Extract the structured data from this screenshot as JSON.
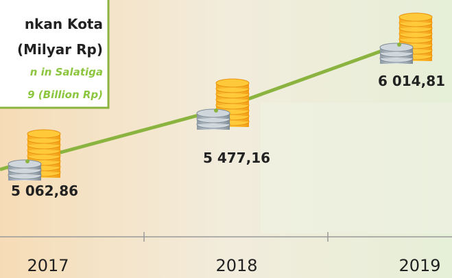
{
  "chart_data": {
    "type": "line",
    "title_lines": [
      "nkan Kota",
      "(Milyar Rp)"
    ],
    "subtitle_lines": [
      "n in Salatiga",
      "9 (Billion Rp)"
    ],
    "categories": [
      "2017",
      "2018",
      "2019"
    ],
    "values": [
      5062.86,
      5477.16,
      6014.81
    ],
    "value_labels": [
      "5 062,86",
      "5 477,16",
      "6 014,81"
    ],
    "color": "#8ab43f"
  }
}
